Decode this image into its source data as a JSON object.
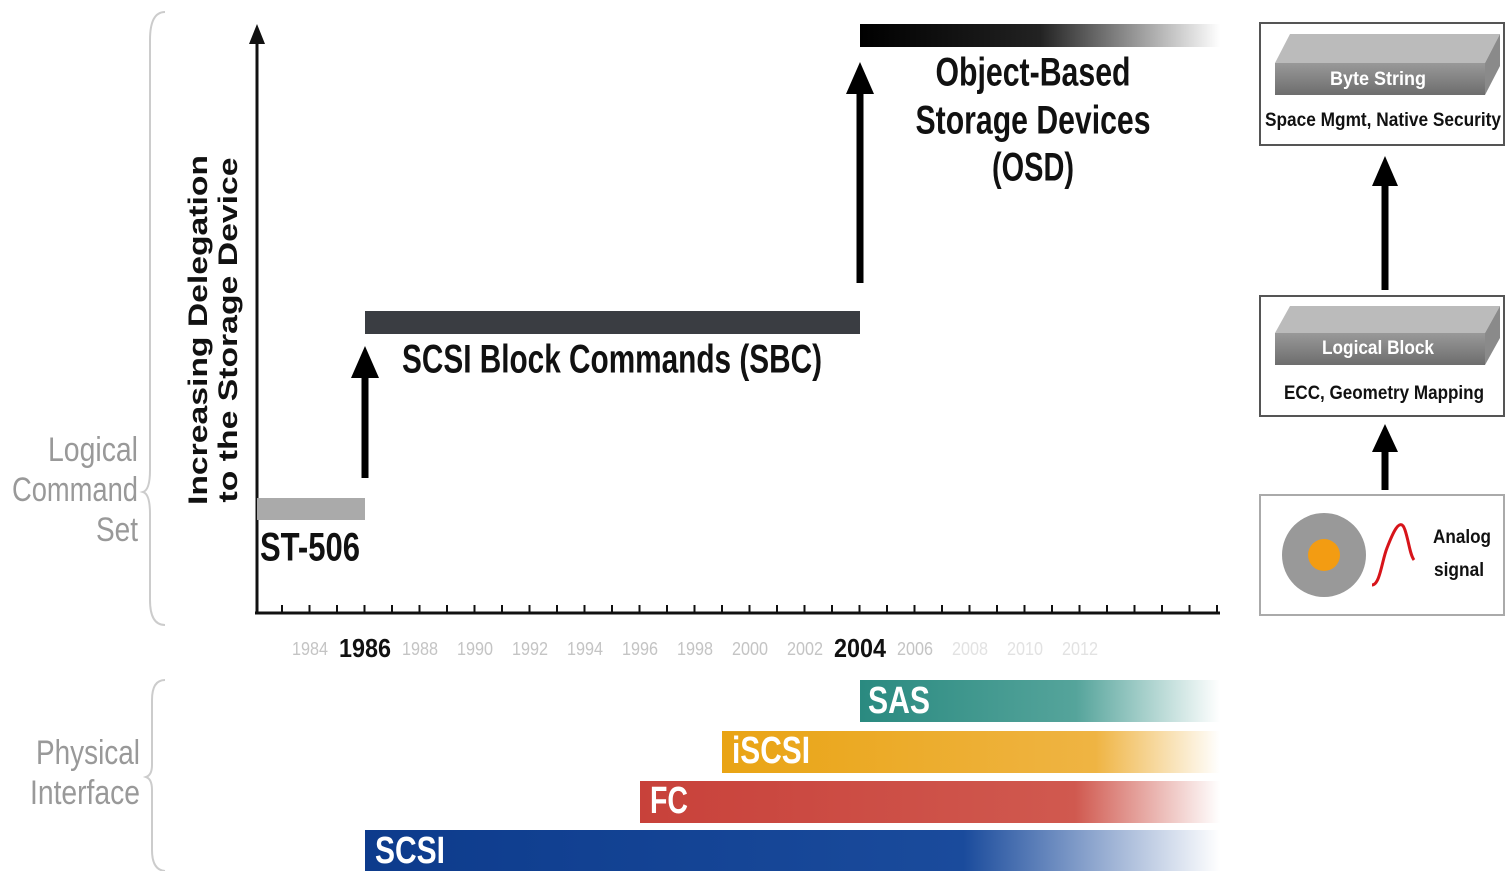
{
  "axis": {
    "y_label": [
      "Increasing Delegation",
      "to the Storage Device"
    ],
    "years": [
      "1984",
      "1986",
      "1988",
      "1990",
      "1992",
      "1994",
      "1996",
      "1998",
      "2000",
      "2002",
      "2004",
      "2006",
      "2008",
      "2010",
      "2012"
    ]
  },
  "left_labels": {
    "logical": [
      "Logical",
      "Command",
      "Set"
    ],
    "physical": [
      "Physical",
      "Interface"
    ]
  },
  "command_sets": [
    {
      "label": "ST-506"
    },
    {
      "label": "SCSI Block Commands (SBC)"
    },
    {
      "lines": [
        "Object-Based",
        "Storage Devices",
        "(OSD)"
      ]
    }
  ],
  "interfaces": [
    "SAS",
    "iSCSI",
    "FC",
    "SCSI"
  ],
  "stack": [
    {
      "title": "Byte String",
      "detail": "Space Mgmt, Native Security"
    },
    {
      "title": "Logical Block",
      "detail": "ECC, Geometry Mapping"
    },
    {
      "detail": [
        "Analog",
        "signal"
      ]
    }
  ]
}
